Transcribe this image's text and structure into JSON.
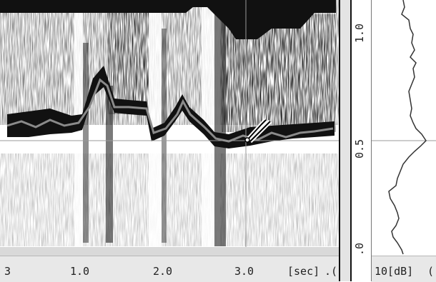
{
  "time_axis": {
    "ticks": [
      {
        "label": "3",
        "t": 0.0
      },
      {
        "label": "1.0",
        "t": 1.0
      },
      {
        "label": "2.0",
        "t": 2.0
      },
      {
        "label": "3.0",
        "t": 3.0
      }
    ],
    "unit_label": "[sec]",
    "trailing_label": ".("
  },
  "freq_axis": {
    "ticks": [
      {
        "label": "1.0",
        "value": 1.0
      },
      {
        "label": "0.5",
        "value": 0.5
      },
      {
        "label": ".0",
        "value": 0.0
      }
    ]
  },
  "level_axis": {
    "label": "10[dB]",
    "trailing_label": "("
  },
  "cursor": {
    "time_sec": 3.0,
    "freq_value": 0.5
  },
  "colors": {
    "track_line": "#8a8a8a",
    "track_band": "#111111",
    "crosshair": "#9a9a9a",
    "axis_bar": "#e8e8e8"
  },
  "icons": {
    "cursor": "tuning-fork-cursor-icon"
  }
}
